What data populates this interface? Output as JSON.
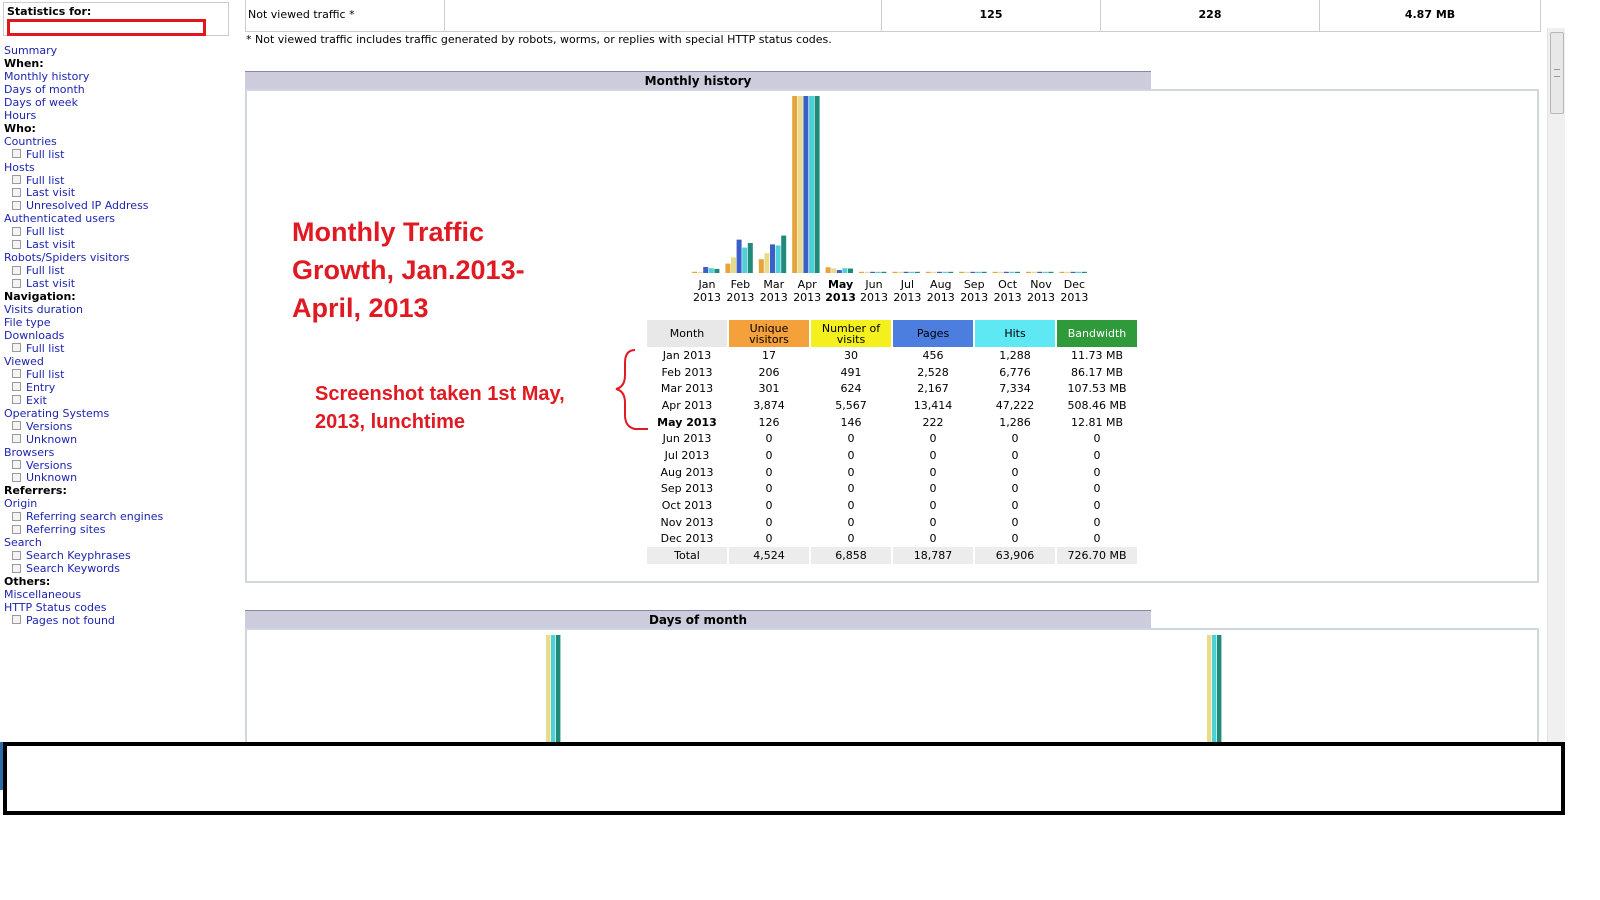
{
  "sidebar": {
    "stats_title": "Statistics for:",
    "items": [
      {
        "type": "link",
        "label": "Summary"
      },
      {
        "type": "head",
        "label": "When:"
      },
      {
        "type": "link",
        "label": "Monthly history"
      },
      {
        "type": "link",
        "label": "Days of month"
      },
      {
        "type": "link",
        "label": "Days of week"
      },
      {
        "type": "link",
        "label": "Hours"
      },
      {
        "type": "head",
        "label": "Who:"
      },
      {
        "type": "link",
        "label": "Countries"
      },
      {
        "type": "sub",
        "label": "Full list"
      },
      {
        "type": "link",
        "label": "Hosts"
      },
      {
        "type": "sub",
        "label": "Full list"
      },
      {
        "type": "sub",
        "label": "Last visit"
      },
      {
        "type": "sub",
        "label": "Unresolved IP Address"
      },
      {
        "type": "link",
        "label": "Authenticated users"
      },
      {
        "type": "sub",
        "label": "Full list"
      },
      {
        "type": "sub",
        "label": "Last visit"
      },
      {
        "type": "link",
        "label": "Robots/Spiders visitors"
      },
      {
        "type": "sub",
        "label": "Full list"
      },
      {
        "type": "sub",
        "label": "Last visit"
      },
      {
        "type": "head",
        "label": "Navigation:"
      },
      {
        "type": "link",
        "label": "Visits duration"
      },
      {
        "type": "link",
        "label": "File type"
      },
      {
        "type": "link",
        "label": "Downloads"
      },
      {
        "type": "sub",
        "label": "Full list"
      },
      {
        "type": "link",
        "label": "Viewed"
      },
      {
        "type": "sub",
        "label": "Full list"
      },
      {
        "type": "sub",
        "label": "Entry"
      },
      {
        "type": "sub",
        "label": "Exit"
      },
      {
        "type": "link",
        "label": "Operating Systems"
      },
      {
        "type": "sub",
        "label": "Versions"
      },
      {
        "type": "sub",
        "label": "Unknown"
      },
      {
        "type": "link",
        "label": "Browsers"
      },
      {
        "type": "sub",
        "label": "Versions"
      },
      {
        "type": "sub",
        "label": "Unknown"
      },
      {
        "type": "head",
        "label": "Referrers:"
      },
      {
        "type": "link",
        "label": "Origin"
      },
      {
        "type": "sub",
        "label": "Referring search engines"
      },
      {
        "type": "sub",
        "label": "Referring sites"
      },
      {
        "type": "link",
        "label": "Search"
      },
      {
        "type": "sub",
        "label": "Search Keyphrases"
      },
      {
        "type": "sub",
        "label": "Search Keywords"
      },
      {
        "type": "head",
        "label": "Others:"
      },
      {
        "type": "link",
        "label": "Miscellaneous"
      },
      {
        "type": "link",
        "label": "HTTP Status codes"
      },
      {
        "type": "sub",
        "label": "Pages not found"
      }
    ]
  },
  "not_viewed": {
    "label": "Not viewed traffic *",
    "pages": "125",
    "hits": "228",
    "bandwidth": "4.87 MB",
    "note": "* Not viewed traffic includes traffic generated by robots, worms, or replies with special HTTP status codes."
  },
  "sections": {
    "monthly_history": "Monthly history",
    "days_of_month": "Days of month"
  },
  "annotations": {
    "title": "Monthly Traffic Growth, Jan.2013- April, 2013",
    "subtitle": "Screenshot taken 1st May, 2013, lunchtime"
  },
  "monthly_table": {
    "headers": [
      "Month",
      "Unique visitors",
      "Number of visits",
      "Pages",
      "Hits",
      "Bandwidth"
    ],
    "header_colors": [
      "#e8e8e8",
      "#f4a13c",
      "#f4f01e",
      "#4c7ee0",
      "#5ee8f4",
      "#2f9a3a"
    ],
    "rows": [
      [
        "Jan 2013",
        "17",
        "30",
        "456",
        "1,288",
        "11.73 MB"
      ],
      [
        "Feb 2013",
        "206",
        "491",
        "2,528",
        "6,776",
        "86.17 MB"
      ],
      [
        "Mar 2013",
        "301",
        "624",
        "2,167",
        "7,334",
        "107.53 MB"
      ],
      [
        "Apr 2013",
        "3,874",
        "5,567",
        "13,414",
        "47,222",
        "508.46 MB"
      ],
      [
        "May 2013",
        "126",
        "146",
        "222",
        "1,286",
        "12.81 MB"
      ],
      [
        "Jun 2013",
        "0",
        "0",
        "0",
        "0",
        "0"
      ],
      [
        "Jul 2013",
        "0",
        "0",
        "0",
        "0",
        "0"
      ],
      [
        "Aug 2013",
        "0",
        "0",
        "0",
        "0",
        "0"
      ],
      [
        "Sep 2013",
        "0",
        "0",
        "0",
        "0",
        "0"
      ],
      [
        "Oct 2013",
        "0",
        "0",
        "0",
        "0",
        "0"
      ],
      [
        "Nov 2013",
        "0",
        "0",
        "0",
        "0",
        "0"
      ],
      [
        "Dec 2013",
        "0",
        "0",
        "0",
        "0",
        "0"
      ]
    ],
    "total": [
      "Total",
      "4,524",
      "6,858",
      "18,787",
      "63,906",
      "726.70 MB"
    ],
    "current_month_index": 4
  },
  "chart_data": {
    "type": "bar",
    "categories": [
      "Jan\n2013",
      "Feb\n2013",
      "Mar\n2013",
      "Apr\n2013",
      "May\n2013",
      "Jun\n2013",
      "Jul\n2013",
      "Aug\n2013",
      "Sep\n2013",
      "Oct\n2013",
      "Nov\n2013",
      "Dec\n2013"
    ],
    "series": [
      {
        "values": [
          17,
          206,
          301,
          3874,
          126,
          0,
          0,
          0,
          0,
          0,
          0,
          0
        ],
        "color": "#e6a43c"
      },
      {
        "values": [
          30,
          491,
          624,
          5567,
          146,
          0,
          0,
          0,
          0,
          0,
          0,
          0
        ],
        "color": "#e8dc8c"
      },
      {
        "values": [
          456,
          2528,
          2167,
          13414,
          222,
          0,
          0,
          0,
          0,
          0,
          0,
          0
        ],
        "color": "#3c5ec8"
      },
      {
        "values": [
          1288,
          6776,
          7334,
          47222,
          1286,
          0,
          0,
          0,
          0,
          0,
          0,
          0
        ],
        "color": "#4fd0d8"
      },
      {
        "values": [
          11.73,
          86.17,
          107.53,
          508.46,
          12.81,
          0,
          0,
          0,
          0,
          0,
          0,
          0
        ],
        "color": "#1f8a7a"
      }
    ],
    "current_category_index": 4
  },
  "days_chart": {
    "colors": [
      "#e8dc8c",
      "#4fd0d8",
      "#1f8a7a"
    ]
  }
}
